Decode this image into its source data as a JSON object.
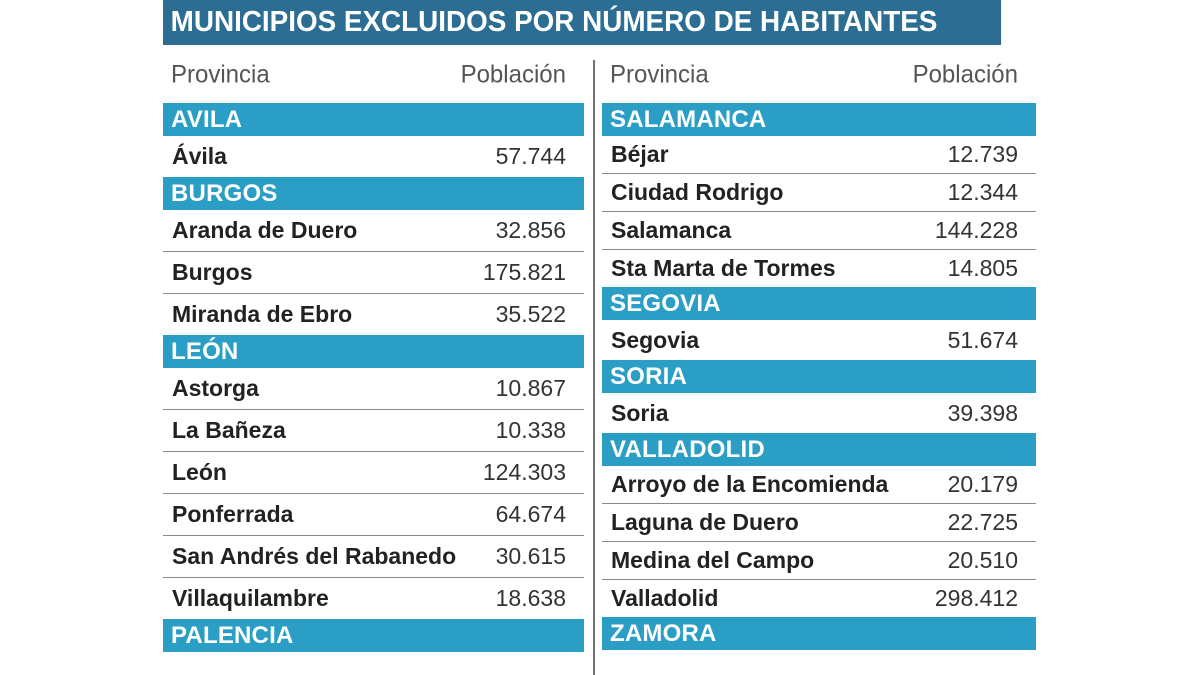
{
  "title": "MUNICIPIOS EXCLUIDOS POR NÚMERO DE HABITANTES",
  "headers": {
    "provincia": "Provincia",
    "poblacion": "Población"
  },
  "colors": {
    "title_bg": "#2c6e93",
    "province_bg": "#2b9ec5"
  },
  "left": [
    {
      "provincia": "AVILA",
      "rows": [
        {
          "name": "Ávila",
          "pop": "57.744"
        }
      ]
    },
    {
      "provincia": "BURGOS",
      "rows": [
        {
          "name": "Aranda de Duero",
          "pop": "32.856"
        },
        {
          "name": "Burgos",
          "pop": "175.821"
        },
        {
          "name": "Miranda de Ebro",
          "pop": "35.522"
        }
      ]
    },
    {
      "provincia": "LEÓN",
      "rows": [
        {
          "name": "Astorga",
          "pop": "10.867"
        },
        {
          "name": "La Bañeza",
          "pop": "10.338"
        },
        {
          "name": "León",
          "pop": "124.303"
        },
        {
          "name": "Ponferrada",
          "pop": "64.674"
        },
        {
          "name": "San Andrés del Rabanedo",
          "pop": "30.615"
        },
        {
          "name": "Villaquilambre",
          "pop": "18.638"
        }
      ]
    },
    {
      "provincia": "PALENCIA",
      "rows": []
    }
  ],
  "right": [
    {
      "provincia": "SALAMANCA",
      "rows": [
        {
          "name": "Béjar",
          "pop": "12.739"
        },
        {
          "name": "Ciudad Rodrigo",
          "pop": "12.344"
        },
        {
          "name": "Salamanca",
          "pop": "144.228"
        },
        {
          "name": "Sta Marta de Tormes",
          "pop": "14.805"
        }
      ]
    },
    {
      "provincia": "SEGOVIA",
      "rows": [
        {
          "name": "Segovia",
          "pop": "51.674"
        }
      ]
    },
    {
      "provincia": "SORIA",
      "rows": [
        {
          "name": "Soria",
          "pop": "39.398"
        }
      ]
    },
    {
      "provincia": "VALLADOLID",
      "rows": [
        {
          "name": "Arroyo de la Encomienda",
          "pop": "20.179"
        },
        {
          "name": "Laguna de Duero",
          "pop": "22.725"
        },
        {
          "name": "Medina del Campo",
          "pop": "20.510"
        },
        {
          "name": "Valladolid",
          "pop": "298.412"
        }
      ]
    },
    {
      "provincia": "ZAMORA",
      "rows": []
    }
  ]
}
